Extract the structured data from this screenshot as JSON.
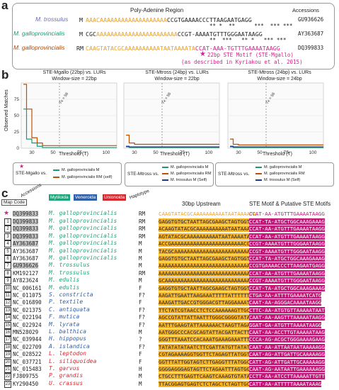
{
  "panel_a": {
    "letter": "a",
    "title": "Poly-Adenine Region",
    "accessions_header": "Accessions",
    "rows": [
      {
        "species": "M. trossulus",
        "hap": "M",
        "seq_pre": "AAAC",
        "seq_polyA": "AAAAAAAAAAAAAAAAAAA",
        "seq_post": "CCGTGAAAACCCTTAAGAATGAGG",
        "acc": "GU936626"
      },
      {
        "species": "M. galloprovincialis",
        "hap": "M",
        "seq_pre": "CGC",
        "seq_polyA": "AAAAAAAAAAAAAAAAAAAAAAA",
        "seq_post": "CCGT-AAAATGTTTGGGAATAAGG",
        "acc": "AY363687"
      },
      {
        "species": "M. galloprovincialis",
        "hap": "RM",
        "seq_pre": "CAAGTATACGC",
        "seq_polyA": "AAAAAAAAAATAATAAAATA",
        "seq_post": "CCAT-AAA-TGTTTGAAAATAAGG",
        "acc": "DQ399833"
      }
    ],
    "stars1": "** *  **      ***  *** ***",
    "stars2": "**  ***   ** *   *** ***",
    "motif_note1": "22bp STE Motif (STE-Mgallo)",
    "motif_note2": "(as described in Kyriakou et al. 2015)"
  },
  "panel_b": {
    "letter": "b",
    "y_label": "Observed Matches",
    "x_label": "Threshold (T)",
    "charts": [
      {
        "title1": "STE-Mgallo (22bp) vs. LURs",
        "title2": "Window-size = 22bp",
        "annot": "Tx = 56",
        "legend_title": "STE-Mgallo vs.",
        "legend": [
          "M. galloprovincialis M",
          "M. galloprovincialis RM (self)"
        ]
      },
      {
        "title1": "STE-Mtross (24bp) vs. LURs",
        "title2": "Window-size = 22bp",
        "annot": "Tx = 56",
        "legend_title": "STE-Mtross vs.",
        "legend": [
          "M. galloprovincialis M",
          "M. galloprovincialis RM",
          "M. trossulus M (Self)"
        ]
      },
      {
        "title1": "STE-Mtross (24bp) vs. LURs",
        "title2": "Window-size = 24bp",
        "annot": "Tx = 56",
        "legend_title": "",
        "legend": [
          "M. galloprovincialis M",
          "M. galloprovincialis RM",
          "M. trossulus M (Self)"
        ]
      }
    ]
  },
  "chart_data": [
    {
      "type": "line",
      "title": "STE-Mgallo (22bp) vs. LURs",
      "xlabel": "Threshold (T)",
      "ylabel": "Observed Matches",
      "ylim": [
        0,
        100
      ],
      "xlim": [
        20,
        110
      ],
      "x": [
        22,
        25,
        30,
        35,
        40,
        50,
        60,
        80,
        100,
        110
      ],
      "series": [
        {
          "name": "M. galloprovincialis M",
          "values": [
            60,
            14,
            8,
            3,
            1,
            1,
            1,
            1,
            1,
            1
          ]
        },
        {
          "name": "M. galloprovincialis RM (self)",
          "values": [
            98,
            60,
            16,
            8,
            4,
            4,
            4,
            4,
            4,
            4
          ]
        }
      ]
    },
    {
      "type": "line",
      "title": "STE-Mtross (24bp) vs. LURs",
      "xlabel": "Threshold (T)",
      "ylabel": "Observed Matches",
      "ylim": [
        0,
        100
      ],
      "xlim": [
        20,
        110
      ],
      "x": [
        22,
        25,
        30,
        35,
        40,
        50,
        60,
        80,
        100,
        110
      ],
      "series": [
        {
          "name": "M. galloprovincialis M",
          "values": [
            2,
            1,
            1,
            1,
            1,
            1,
            1,
            1,
            1,
            1
          ]
        },
        {
          "name": "M. galloprovincialis RM",
          "values": [
            20,
            8,
            6,
            6,
            6,
            6,
            6,
            6,
            6,
            6
          ]
        },
        {
          "name": "M. trossulus M (Self)",
          "values": [
            3,
            2,
            2,
            2,
            2,
            2,
            2,
            2,
            2,
            2
          ]
        }
      ]
    },
    {
      "type": "line",
      "title": "STE-Mtross (24bp) vs. LURs",
      "xlabel": "Threshold (T)",
      "ylabel": "Observed Matches",
      "ylim": [
        0,
        100
      ],
      "xlim": [
        20,
        110
      ],
      "x": [
        22,
        25,
        30,
        35,
        40,
        50,
        60,
        80,
        100,
        110
      ],
      "series": [
        {
          "name": "M. galloprovincialis M",
          "values": [
            2,
            1,
            1,
            1,
            1,
            1,
            1,
            1,
            1,
            1
          ]
        },
        {
          "name": "M. galloprovincialis RM",
          "values": [
            14,
            6,
            5,
            5,
            5,
            5,
            5,
            5,
            5,
            5
          ]
        },
        {
          "name": "M. trossulus M (Self)",
          "values": [
            3,
            2,
            2,
            2,
            2,
            2,
            2,
            2,
            2,
            2
          ]
        }
      ]
    }
  ],
  "panel_c": {
    "letter": "c",
    "map_code": "Map Code",
    "accessions": "Accessions",
    "families": [
      "Mytiloida",
      "Veneroida",
      "Unionoida"
    ],
    "haplotype": "Haplotype",
    "upstream_header": "30bp Upstream",
    "motif_header": "STE Motif & Putative STE Motifs",
    "ref_row": {
      "acc": "DQ399833",
      "species": "M. galloprovincialis",
      "hap": "RM",
      "up": "CAAGTATACGCAAAAAAAAAATAATAAAATA",
      "motif": "CCAT-AA-ATGTTTGAAAATAAGG"
    },
    "rows": [
      {
        "n": "1",
        "acc": "DQ399833",
        "species": "M. galloprovincialis",
        "hap": "RM",
        "up": "GAGGTGTGCTAATTAGCGAAGCTAGTGGTG",
        "motif": "CCAT-TA-ATGCTGGCAAAGAAAG",
        "hl": true
      },
      {
        "n": "2",
        "acc": "DQ399833",
        "species": "M. galloprovincialis",
        "hap": "RM",
        "up": "ACAAGTATACGCAAAAAAAAAATAATAAAATA",
        "motif": "CCAT-AA-ATGTTTGAAAATAAGG",
        "hl": true
      },
      {
        "n": "3",
        "acc": "DQ399833",
        "species": "M. galloprovincialis",
        "hap": "RM",
        "up": "AGTATACGCAAAAAAAAAATAATAAAATACGC",
        "motif": "CCAT-AA-ATGTTTGAAAATAAGG",
        "hl": true
      },
      {
        "n": "4",
        "acc": "AY363687",
        "species": "M. galloprovincialis",
        "hap": "M",
        "up": "ACCGAAAAAAAAAAAAAAAAAAAAAAACGC",
        "motif": "CCGT-AAAATGTTTGGGAATAAGG",
        "hl": true
      },
      {
        "n": "5",
        "acc": "AY363687",
        "species": "M. galloprovincialis",
        "hap": "M",
        "up": "TACGCAAAAAAAAAAAAAAAAAAAAAAAAA",
        "motif": "CCGT-AAAATGTTTGGGAATAAGG",
        "hl": false
      },
      {
        "n": "6",
        "acc": "AY363687",
        "species": "M. galloprovincialis",
        "hap": "M",
        "up": "GAGGTGTGCTAATTAGCGAAGCTAGTGGTG",
        "motif": "CCAT-TA-ATGCTGGCAAAGAAAG",
        "hl": false
      },
      {
        "n": "7",
        "acc": "GU936626",
        "species": "M. trossulus",
        "hap": "M",
        "up": "AAAAAAAAAAAAAAAAAAAAAAAAAAAAA",
        "motif": "CCGTGAAAACCCTTAAGAATGAGG",
        "hl": true
      },
      {
        "n": "8",
        "acc": "KM192127",
        "species": "M. trossulus",
        "hap": "RM",
        "up": "AAAAAAAAAAAAAAAAAAAAAAAAAAAAAA",
        "motif": "CCAT-AA-ATGTTTGAAAATAAGG",
        "hl": false
      },
      {
        "n": "9",
        "acc": "AY823624",
        "species": "M. edulis",
        "hap": "M",
        "up": "GCAAAAAAAAAAAAAAAAAAAAAAAAAAAA",
        "motif": "CCGT-AAAATGTTTGGGAATAAGG",
        "hl": false
      },
      {
        "n": "10",
        "acc": "NC_006161",
        "species": "M. edulis",
        "hap": "F",
        "up": "GAGGTGTGCTAATTAGCGAAGCTAGTGGTG",
        "motif": "CCAT-TA-ATGCTGGCAAAGAAAG",
        "hl": false
      },
      {
        "n": "11",
        "acc": "NC_011075",
        "species": "S. constricta",
        "hap": "F?",
        "up": "AAGATTGAATTAAGAAATTTTTATTTTTTTT",
        "motif": "CTGA-AA-ATTTTGAAAATCATG",
        "hl": false
      },
      {
        "n": "12",
        "acc": "NC_016890",
        "species": "P. textile",
        "hap": "F",
        "up": "AAAGATTGACCGTGGGACGTTAGGAAAATA",
        "motif": "CAAT-AA-AGGGACAAAATAAGG",
        "hl": false
      },
      {
        "n": "13",
        "acc": "NC_021375",
        "species": "C. antiquata",
        "hap": "F?",
        "up": "TTCTATCGTAACCTCTCCAAAAAAGTTGCG",
        "motif": "CTTC-AA-ATGTGTTAAAAATAAT",
        "hl": false
      },
      {
        "n": "14",
        "acc": "NC_022194",
        "species": "F. mutica",
        "hap": "F?",
        "up": "AGCCGTATTATTAATTTGGGCGGGGTATA",
        "motif": "CAAT-AA-AAGTTTAAAAATAAGG",
        "hl": false
      },
      {
        "n": "15",
        "acc": "NC_022924",
        "species": "M. lyrata",
        "hap": "F?",
        "up": "AATTTGAAGTATTAAAAAACTAAGTTAGAT",
        "motif": "GGAT-GA-ATGTTTAAAATAAGG",
        "hl": false
      },
      {
        "n": "16",
        "acc": "MN528029",
        "species": "L. balthica",
        "hap": "M",
        "up": "AATGGGCCCACGCAGTATTACGATTACTT",
        "motif": "CAAT-AA-ACCTTGTAAAAATAAG",
        "hl": false
      },
      {
        "n": "17",
        "acc": "NC_039944",
        "species": "H. hippopus",
        "hap": "?",
        "up": "GGGTTTAAATCCACAAATGAAAGAAATTTA",
        "motif": "CCCA-AG-ACGCTGGGAAAAGAAG",
        "hl": false
      },
      {
        "n": "18",
        "acc": "NC_022709",
        "species": "A. islandica",
        "hap": "F?",
        "up": "TATATATATAATCTTCGATTATGTTATATA",
        "motif": "CAAT-AA-ATTAATAATAAAAAGG",
        "hl": false
      },
      {
        "n": "19",
        "acc": "NC_028522",
        "species": "L. leptodon",
        "hap": "F",
        "up": "CGTAGAAAAGGTGGTTCTAGAGTTATGGTCT",
        "motif": "CAAT-AG-ATTGATTGCAAAAAGG",
        "hl": false
      },
      {
        "n": "20",
        "acc": "NC_037721",
        "species": "L. siliquoidea",
        "hap": "F",
        "up": "GGTTTATTGGTAGTCTTGAGGTTTATGGCT",
        "motif": "CATT-AG-ATTGATTGCAAAAAGG",
        "hl": false
      },
      {
        "n": "21",
        "acc": "NC_015483",
        "species": "T. garvus",
        "hap": "H",
        "up": "GGGGAGGGAGTAGTTCTAGAATTTAGTGGT",
        "motif": "CAAT-AG-AATAATTGAAAAAAGG",
        "hl": false
      },
      {
        "n": "22",
        "acc": "FJ809755",
        "species": "P. grandis",
        "hap": "M",
        "up": "CTGCCTTTGAGTTCAAGTCAAAGTGTATAG",
        "motif": "CCTT-AA-ATCCTTAAAAATTGTT",
        "hl": false
      },
      {
        "n": "23",
        "acc": "KY290450",
        "species": "U. crassus",
        "hap": "M",
        "up": "TTACGGAGTGAGTCTCTAGCTCTAGTTGCA",
        "motif": "CATT-AA-ATTTTTAAAATAAAG",
        "hl": false
      }
    ]
  },
  "colors": {
    "orange": "#f0a020",
    "magenta": "#c4177a",
    "green": "#1a9a7a",
    "brown": "#c05000",
    "navy": "#1f3a93",
    "mytiloida": "#1fa37a",
    "veneroida": "#2f5fa8",
    "unionoida": "#d8282e"
  }
}
